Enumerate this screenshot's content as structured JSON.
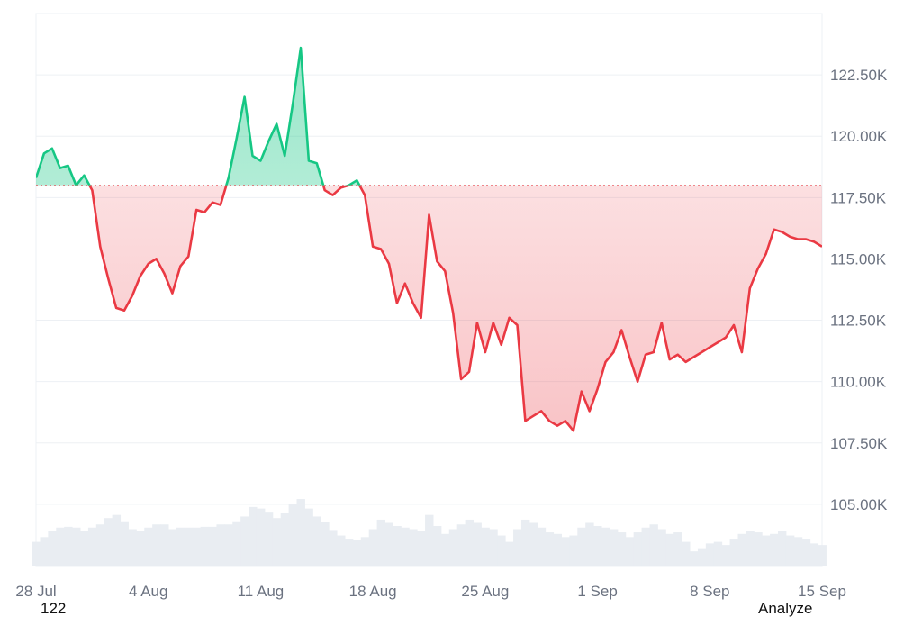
{
  "chart_data": {
    "type": "area",
    "baseline": 118000,
    "y_axis": {
      "min": 102500,
      "max": 125000,
      "ticks": [
        105000,
        107500,
        110000,
        112500,
        115000,
        117500,
        120000,
        122500
      ],
      "tick_labels": [
        "105.00K",
        "107.50K",
        "110.00K",
        "112.50K",
        "115.00K",
        "117.50K",
        "120.00K",
        "122.50K"
      ],
      "position": "right"
    },
    "x_axis": {
      "start": "2025-07-28",
      "end": "2025-09-15",
      "ticks": [
        "2025-07-28",
        "2025-08-04",
        "2025-08-11",
        "2025-08-18",
        "2025-08-25",
        "2025-09-01",
        "2025-09-08",
        "2025-09-15"
      ],
      "tick_labels": [
        "28 Jul",
        "4 Aug",
        "11 Aug",
        "18 Aug",
        "25 Aug",
        "1 Sep",
        "8 Sep",
        "15 Sep"
      ]
    },
    "colors": {
      "above": "#16c784",
      "below": "#ea3943",
      "volume": "#e9edf2",
      "baseline_dots": "#ea3943",
      "grid": "#edf0f4"
    },
    "series": [
      {
        "x": [
          "2025-07-28",
          "2025-07-28T12",
          "2025-07-29",
          "2025-07-29T12",
          "2025-07-30",
          "2025-07-30T12",
          "2025-07-31",
          "2025-07-31T12",
          "2025-08-01",
          "2025-08-01T12",
          "2025-08-02",
          "2025-08-02T12",
          "2025-08-03",
          "2025-08-03T12",
          "2025-08-04",
          "2025-08-04T12",
          "2025-08-05",
          "2025-08-05T12",
          "2025-08-06",
          "2025-08-06T12",
          "2025-08-07",
          "2025-08-07T12",
          "2025-08-08",
          "2025-08-08T12",
          "2025-08-09",
          "2025-08-09T12",
          "2025-08-10",
          "2025-08-10T12",
          "2025-08-11",
          "2025-08-11T12",
          "2025-08-12",
          "2025-08-12T12",
          "2025-08-13",
          "2025-08-13T12",
          "2025-08-14",
          "2025-08-14T12",
          "2025-08-15",
          "2025-08-15T12",
          "2025-08-16",
          "2025-08-16T12",
          "2025-08-17",
          "2025-08-17T12",
          "2025-08-18",
          "2025-08-18T12",
          "2025-08-19",
          "2025-08-19T12",
          "2025-08-20",
          "2025-08-20T12",
          "2025-08-21",
          "2025-08-21T12",
          "2025-08-22",
          "2025-08-22T12",
          "2025-08-23",
          "2025-08-23T12",
          "2025-08-24",
          "2025-08-24T12",
          "2025-08-25",
          "2025-08-25T12",
          "2025-08-26",
          "2025-08-26T12",
          "2025-08-27",
          "2025-08-27T12",
          "2025-08-28",
          "2025-08-28T12",
          "2025-08-29",
          "2025-08-29T12",
          "2025-08-30",
          "2025-08-30T12",
          "2025-08-31",
          "2025-08-31T12",
          "2025-09-01",
          "2025-09-01T12",
          "2025-09-02",
          "2025-09-02T12",
          "2025-09-03",
          "2025-09-03T12",
          "2025-09-04",
          "2025-09-04T12",
          "2025-09-05",
          "2025-09-05T12",
          "2025-09-06",
          "2025-09-06T12",
          "2025-09-07",
          "2025-09-07T12",
          "2025-09-08",
          "2025-09-08T12",
          "2025-09-09",
          "2025-09-09T12",
          "2025-09-10",
          "2025-09-10T12",
          "2025-09-11",
          "2025-09-11T12",
          "2025-09-12",
          "2025-09-12T12",
          "2025-09-13",
          "2025-09-13T12",
          "2025-09-14",
          "2025-09-14T12",
          "2025-09-15"
        ],
        "price": [
          118300,
          119300,
          119500,
          118700,
          118800,
          118000,
          118400,
          117800,
          115500,
          114200,
          113000,
          112900,
          113500,
          114300,
          114800,
          115000,
          114400,
          113600,
          114700,
          115100,
          117000,
          116900,
          117300,
          117200,
          118300,
          119900,
          121600,
          119200,
          119000,
          119800,
          120500,
          119200,
          121300,
          123600,
          119000,
          118900,
          117800,
          117600,
          117900,
          118000,
          118200,
          117600,
          115500,
          115400,
          114800,
          113200,
          114000,
          113200,
          112600,
          116800,
          114900,
          114500,
          112800,
          110100,
          110400,
          112400,
          111200,
          112400,
          111500,
          112600,
          112300,
          108400,
          108600,
          108800,
          108400,
          108200,
          108400,
          108000,
          109600,
          108800,
          109700,
          110800,
          111200,
          112100,
          111000,
          110000,
          111100,
          111200,
          112400,
          110900,
          111100,
          110800,
          111000,
          111200,
          111400,
          111600,
          111800,
          112300,
          111200,
          113800,
          114600,
          115200,
          116200,
          116100,
          115900,
          115800,
          115800,
          115700,
          115500
        ],
        "volume": [
          0.3,
          0.36,
          0.44,
          0.48,
          0.49,
          0.48,
          0.44,
          0.48,
          0.52,
          0.6,
          0.64,
          0.56,
          0.46,
          0.44,
          0.48,
          0.52,
          0.52,
          0.46,
          0.48,
          0.48,
          0.48,
          0.49,
          0.49,
          0.52,
          0.52,
          0.56,
          0.62,
          0.74,
          0.72,
          0.68,
          0.6,
          0.66,
          0.78,
          0.84,
          0.72,
          0.62,
          0.55,
          0.45,
          0.38,
          0.34,
          0.32,
          0.36,
          0.46,
          0.58,
          0.54,
          0.5,
          0.48,
          0.46,
          0.44,
          0.64,
          0.5,
          0.4,
          0.46,
          0.52,
          0.58,
          0.54,
          0.48,
          0.46,
          0.38,
          0.3,
          0.46,
          0.58,
          0.54,
          0.48,
          0.42,
          0.4,
          0.36,
          0.38,
          0.48,
          0.54,
          0.5,
          0.48,
          0.46,
          0.42,
          0.36,
          0.42,
          0.48,
          0.52,
          0.46,
          0.4,
          0.42,
          0.3,
          0.18,
          0.22,
          0.28,
          0.3,
          0.26,
          0.34,
          0.4,
          0.44,
          0.42,
          0.38,
          0.4,
          0.44,
          0.38,
          0.36,
          0.34,
          0.28,
          0.26
        ]
      }
    ]
  },
  "footer": {
    "left_text": "122",
    "right_text": "Analyze"
  }
}
